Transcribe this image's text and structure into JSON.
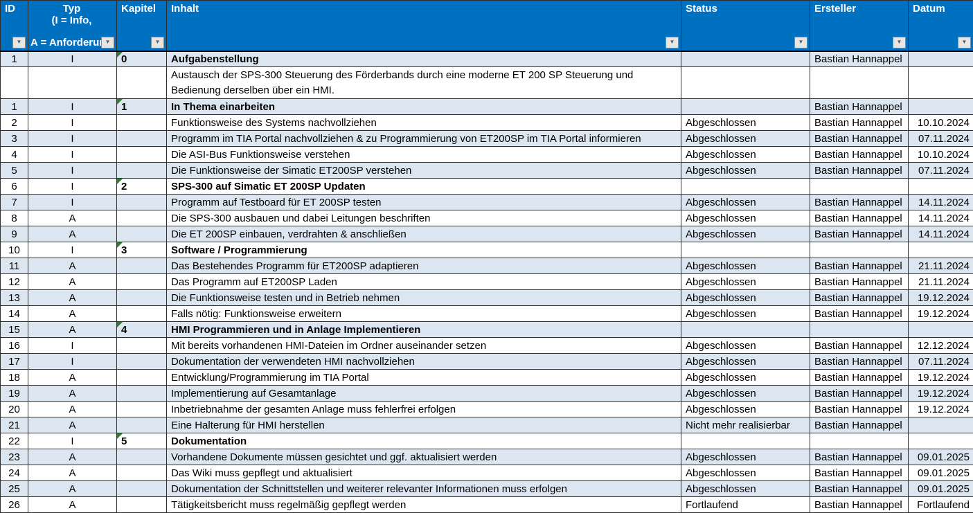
{
  "colors": {
    "header_bg": "#0070C0",
    "band_bg": "#DCE6F1",
    "flag_green": "#2E7D32"
  },
  "table": {
    "columns": [
      {
        "label": "ID"
      },
      {
        "label": "Typ",
        "line2": "(I = Info,",
        "line3": "A = Anforderun"
      },
      {
        "label": "Kapitel"
      },
      {
        "label": "Inhalt"
      },
      {
        "label": "Status"
      },
      {
        "label": "Ersteller"
      },
      {
        "label": "Datum"
      }
    ],
    "rows": [
      {
        "id": "1",
        "typ": "I",
        "kapitel": "0",
        "inhalt": "Aufgabenstellung",
        "status": "",
        "ersteller": "Bastian Hannappel",
        "datum": "",
        "bold": true
      },
      {
        "id": "",
        "typ": "",
        "kapitel": "",
        "inhalt": "Austausch der SPS-300 Steuerung des Förderbands durch eine moderne ET 200 SP Steuerung und Bedienung derselben über ein HMI.",
        "status": "",
        "ersteller": "",
        "datum": "",
        "tall": true
      },
      {
        "id": "1",
        "typ": "I",
        "kapitel": "1",
        "inhalt": "In Thema einarbeiten",
        "status": "",
        "ersteller": "Bastian Hannappel",
        "datum": "",
        "bold": true
      },
      {
        "id": "2",
        "typ": "I",
        "kapitel": "",
        "inhalt": "Funktionsweise des Systems nachvollziehen",
        "status": "Abgeschlossen",
        "ersteller": "Bastian Hannappel",
        "datum": "10.10.2024"
      },
      {
        "id": "3",
        "typ": "I",
        "kapitel": "",
        "inhalt": "Programm im TIA Portal nachvollziehen & zu Programmierung von ET200SP im TIA Portal informieren",
        "status": "Abgeschlossen",
        "ersteller": "Bastian Hannappel",
        "datum": "07.11.2024"
      },
      {
        "id": "4",
        "typ": "I",
        "kapitel": "",
        "inhalt": "Die ASI-Bus Funktionsweise verstehen",
        "status": "Abgeschlossen",
        "ersteller": "Bastian Hannappel",
        "datum": "10.10.2024"
      },
      {
        "id": "5",
        "typ": "I",
        "kapitel": "",
        "inhalt": "Die Funktionsweise der Simatic ET200SP verstehen",
        "status": "Abgeschlossen",
        "ersteller": "Bastian Hannappel",
        "datum": "07.11.2024"
      },
      {
        "id": "6",
        "typ": "I",
        "kapitel": "2",
        "inhalt": "SPS-300 auf Simatic ET 200SP Updaten",
        "status": "",
        "ersteller": "",
        "datum": "",
        "bold": true
      },
      {
        "id": "7",
        "typ": "I",
        "kapitel": "",
        "inhalt": "Programm auf Testboard für ET 200SP testen",
        "status": "Abgeschlossen",
        "ersteller": "Bastian Hannappel",
        "datum": "14.11.2024"
      },
      {
        "id": "8",
        "typ": "A",
        "kapitel": "",
        "inhalt": "Die SPS-300 ausbauen und dabei Leitungen beschriften",
        "status": "Abgeschlossen",
        "ersteller": "Bastian Hannappel",
        "datum": "14.11.2024"
      },
      {
        "id": "9",
        "typ": "A",
        "kapitel": "",
        "inhalt": "Die ET 200SP einbauen, verdrahten & anschließen",
        "status": "Abgeschlossen",
        "ersteller": "Bastian Hannappel",
        "datum": "14.11.2024"
      },
      {
        "id": "10",
        "typ": "I",
        "kapitel": "3",
        "inhalt": "Software / Programmierung",
        "status": "",
        "ersteller": "",
        "datum": "",
        "bold": true
      },
      {
        "id": "11",
        "typ": "A",
        "kapitel": "",
        "inhalt": "Das Bestehendes Programm für ET200SP adaptieren",
        "status": "Abgeschlossen",
        "ersteller": "Bastian Hannappel",
        "datum": "21.11.2024"
      },
      {
        "id": "12",
        "typ": "A",
        "kapitel": "",
        "inhalt": "Das Programm auf ET200SP Laden",
        "status": "Abgeschlossen",
        "ersteller": "Bastian Hannappel",
        "datum": "21.11.2024"
      },
      {
        "id": "13",
        "typ": "A",
        "kapitel": "",
        "inhalt": "Die Funktionsweise testen und in Betrieb nehmen",
        "status": "Abgeschlossen",
        "ersteller": "Bastian Hannappel",
        "datum": "19.12.2024"
      },
      {
        "id": "14",
        "typ": "A",
        "kapitel": "",
        "inhalt": "Falls nötig: Funktionsweise erweitern",
        "status": "Abgeschlossen",
        "ersteller": "Bastian Hannappel",
        "datum": "19.12.2024"
      },
      {
        "id": "15",
        "typ": "A",
        "kapitel": "4",
        "inhalt": "HMI Programmieren und in Anlage Implementieren",
        "status": "",
        "ersteller": "",
        "datum": "",
        "bold": true
      },
      {
        "id": "16",
        "typ": "I",
        "kapitel": "",
        "inhalt": "Mit bereits vorhandenen HMI-Dateien im Ordner auseinander setzen",
        "status": "Abgeschlossen",
        "ersteller": "Bastian Hannappel",
        "datum": "12.12.2024"
      },
      {
        "id": "17",
        "typ": "I",
        "kapitel": "",
        "inhalt": "Dokumentation der verwendeten HMI nachvollziehen",
        "status": "Abgeschlossen",
        "ersteller": "Bastian Hannappel",
        "datum": "07.11.2024"
      },
      {
        "id": "18",
        "typ": "A",
        "kapitel": "",
        "inhalt": "Entwicklung/Programmierung im TIA Portal",
        "status": "Abgeschlossen",
        "ersteller": "Bastian Hannappel",
        "datum": "19.12.2024"
      },
      {
        "id": "19",
        "typ": "A",
        "kapitel": "",
        "inhalt": "Implementierung auf Gesamtanlage",
        "status": "Abgeschlossen",
        "ersteller": "Bastian Hannappel",
        "datum": "19.12.2024"
      },
      {
        "id": "20",
        "typ": "A",
        "kapitel": "",
        "inhalt": "Inbetriebnahme der gesamten Anlage muss fehlerfrei erfolgen",
        "status": "Abgeschlossen",
        "ersteller": "Bastian Hannappel",
        "datum": "19.12.2024"
      },
      {
        "id": "21",
        "typ": "A",
        "kapitel": "",
        "inhalt": "Eine Halterung für HMI herstellen",
        "status": "Nicht mehr realisierbar",
        "ersteller": "Bastian Hannappel",
        "datum": ""
      },
      {
        "id": "22",
        "typ": "I",
        "kapitel": "5",
        "inhalt": "Dokumentation",
        "status": "",
        "ersteller": "",
        "datum": "",
        "bold": true
      },
      {
        "id": "23",
        "typ": "A",
        "kapitel": "",
        "inhalt": "Vorhandene Dokumente müssen gesichtet und ggf. aktualisiert werden",
        "status": "Abgeschlossen",
        "ersteller": "Bastian Hannappel",
        "datum": "09.01.2025"
      },
      {
        "id": "24",
        "typ": "A",
        "kapitel": "",
        "inhalt": "Das Wiki muss gepflegt und aktualisiert",
        "status": "Abgeschlossen",
        "ersteller": "Bastian Hannappel",
        "datum": "09.01.2025"
      },
      {
        "id": "25",
        "typ": "A",
        "kapitel": "",
        "inhalt": "Dokumentation der Schnittstellen und weiterer relevanter Informationen muss erfolgen",
        "status": "Abgeschlossen",
        "ersteller": "Bastian Hannappel",
        "datum": "09.01.2025"
      },
      {
        "id": "26",
        "typ": "A",
        "kapitel": "",
        "inhalt": "Tätigkeitsbericht muss regelmäßig gepflegt werden",
        "status": "Fortlaufend",
        "ersteller": "Bastian Hannappel",
        "datum": "Fortlaufend"
      }
    ]
  }
}
